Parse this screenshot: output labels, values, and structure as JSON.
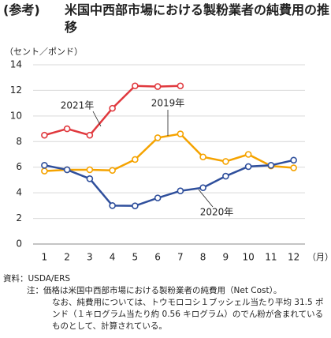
{
  "chart_data": {
    "type": "line",
    "label": "(参考)",
    "title": "米国中西部市場における製粉業者の純費用の推移",
    "y_label": "（セント／ポンド）",
    "x_label": "（月）",
    "categories": [
      "1",
      "2",
      "3",
      "4",
      "5",
      "6",
      "7",
      "8",
      "9",
      "10",
      "11",
      "12"
    ],
    "series": [
      {
        "name": "2021年",
        "color": "#e0393e",
        "values": [
          8.5,
          9.0,
          8.5,
          10.6,
          12.35,
          12.3,
          12.35,
          null,
          null,
          null,
          null,
          null
        ]
      },
      {
        "name": "2019年",
        "color": "#f5a300",
        "values": [
          5.7,
          5.8,
          5.8,
          5.75,
          6.6,
          8.3,
          8.6,
          6.8,
          6.45,
          7.0,
          6.1,
          5.95
        ]
      },
      {
        "name": "2020年",
        "color": "#2f4f9c",
        "values": [
          6.15,
          5.8,
          5.1,
          3.0,
          2.98,
          3.6,
          4.15,
          4.4,
          5.3,
          6.05,
          6.15,
          6.55
        ]
      }
    ],
    "ylim": [
      0,
      14
    ],
    "yticks": [
      0,
      2,
      4,
      6,
      8,
      10,
      12,
      14
    ],
    "grid": true,
    "source": "資料：USDA/ERS",
    "notes": [
      "注：価格は米国中西部市場における製粉業者の純費用（Net Cost）。",
      "なお、純費用については、トウモロコシ１ブッシェル当たり平均 31.5 ポンド（１キログラム当たり約 0.56 キログラム）のでん粉が含まれているものとして、計算されている。"
    ]
  }
}
